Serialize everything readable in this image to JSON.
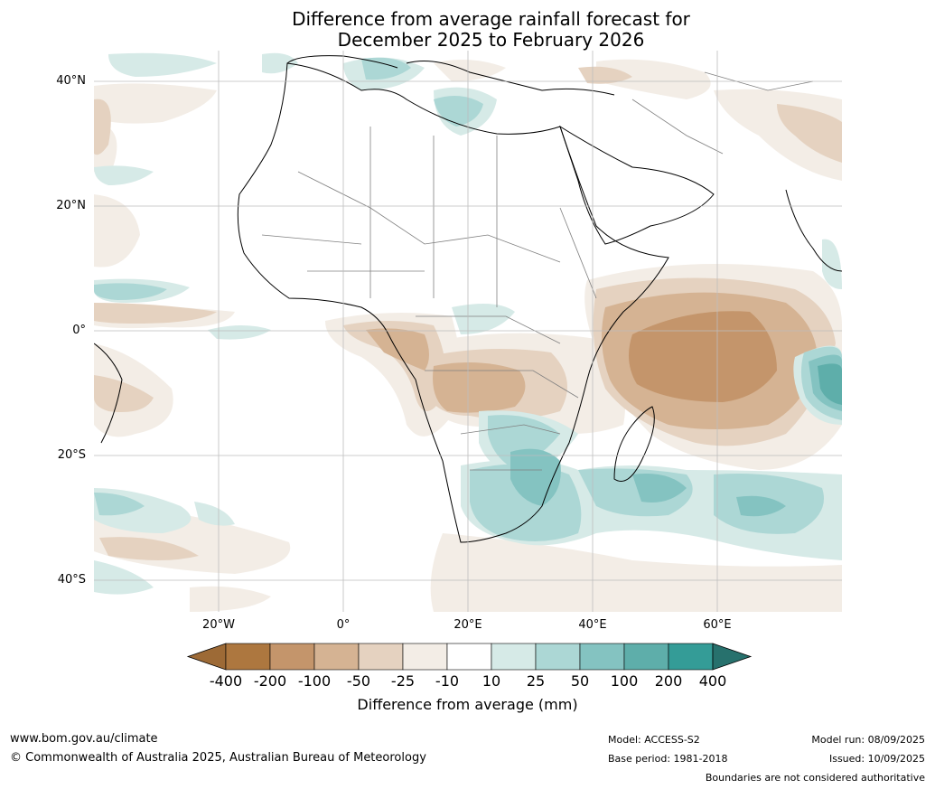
{
  "title": {
    "line1": "Difference from average rainfall forecast for",
    "line2": "December 2025 to February 2026"
  },
  "map": {
    "lat_labels": [
      "40°N",
      "20°N",
      "0°",
      "20°S",
      "40°S"
    ],
    "lon_labels": [
      "20°W",
      "0°",
      "20°E",
      "40°E",
      "60°E"
    ]
  },
  "colorbar": {
    "title": "Difference from average (mm)",
    "ticks": [
      "-400",
      "-200",
      "-100",
      "-50",
      "-25",
      "-10",
      "10",
      "25",
      "50",
      "100",
      "200",
      "400"
    ],
    "colors": {
      "under": "#9d6a36",
      "bins": [
        "#ad773f",
        "#c4956b",
        "#d5b393",
        "#e5d2c0",
        "#f3ede6",
        "#ffffff",
        "#d6eae7",
        "#acd7d5",
        "#84c3c1",
        "#5eaeaa",
        "#349c97"
      ],
      "over": "#27716d"
    }
  },
  "footer": {
    "website": "www.bom.gov.au/climate",
    "copyright": "© Commonwealth of Australia 2025, Australian Bureau of Meteorology",
    "model": "Model: ACCESS-S2",
    "base_period": "Base period: 1981-2018",
    "model_run": "Model run: 08/09/2025",
    "issued": "Issued: 10/09/2025",
    "disclaimer": "Boundaries are not considered authoritative"
  }
}
